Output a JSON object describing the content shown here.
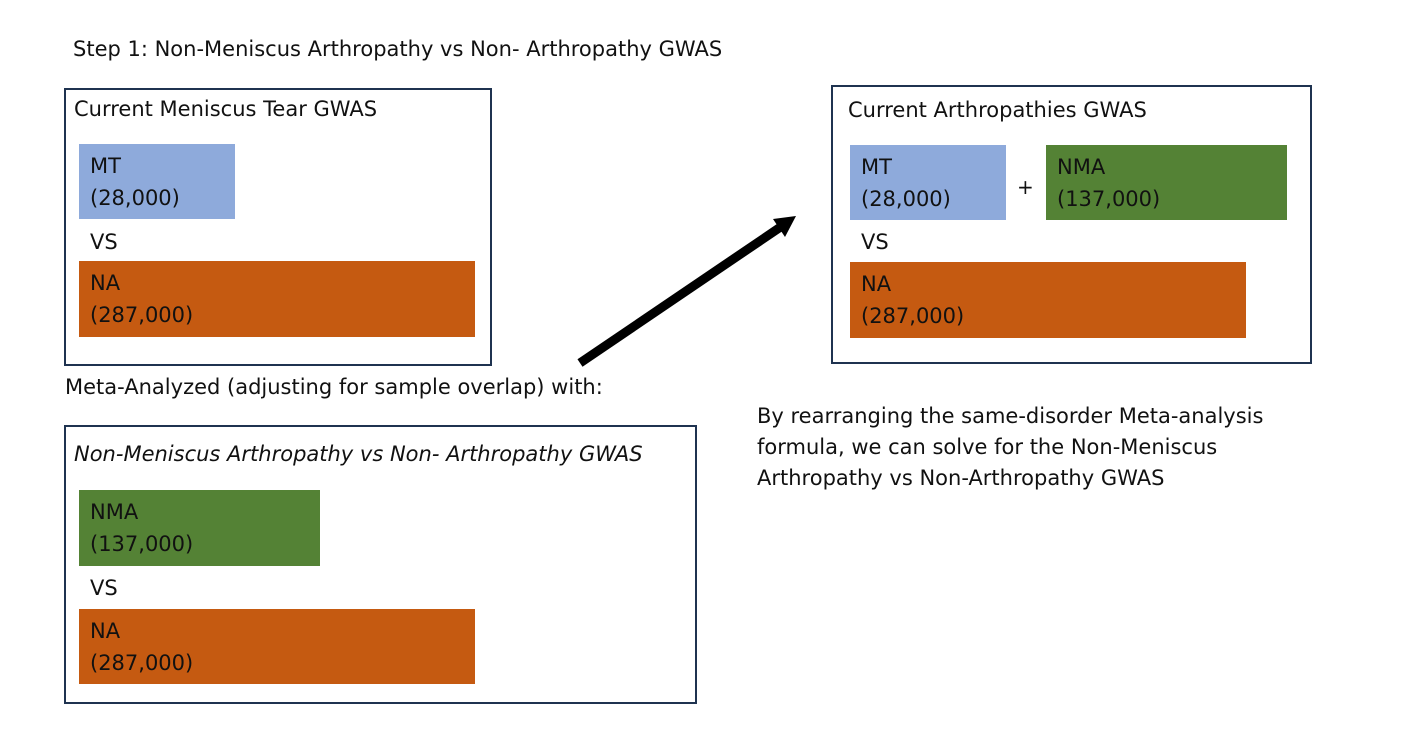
{
  "step_title": "Step 1: Non-Meniscus Arthropathy vs Non- Arthropathy GWAS",
  "colors": {
    "mt_block": "#8eaadb",
    "na_block": "#c55a11",
    "nma_block": "#548235",
    "panel_border": "#1f3350",
    "arrow": "#000000"
  },
  "panel_meniscus": {
    "title": "Current Meniscus Tear GWAS",
    "mt": {
      "label": "MT",
      "count": "(28,000)"
    },
    "vs": "VS",
    "na": {
      "label": "NA",
      "count": "(287,000)"
    }
  },
  "meta_text": "Meta-Analyzed (adjusting for sample overlap) with:",
  "panel_nonmeniscus": {
    "title": "Non-Meniscus Arthropathy vs Non- Arthropathy GWAS",
    "nma": {
      "label": "NMA",
      "count": "(137,000)"
    },
    "vs": "VS",
    "na": {
      "label": "NA",
      "count": "(287,000)"
    }
  },
  "panel_arthropathies": {
    "title": "Current Arthropathies GWAS",
    "mt": {
      "label": "MT",
      "count": "(28,000)"
    },
    "plus": "+",
    "nma": {
      "label": "NMA",
      "count": "(137,000)"
    },
    "vs": "VS",
    "na": {
      "label": "NA",
      "count": "(287,000)"
    }
  },
  "explanation": {
    "line1": "By rearranging the same-disorder Meta-analysis",
    "line2": "formula, we can solve for the Non-Meniscus",
    "line3": "Arthropathy vs Non-Arthropathy GWAS"
  }
}
